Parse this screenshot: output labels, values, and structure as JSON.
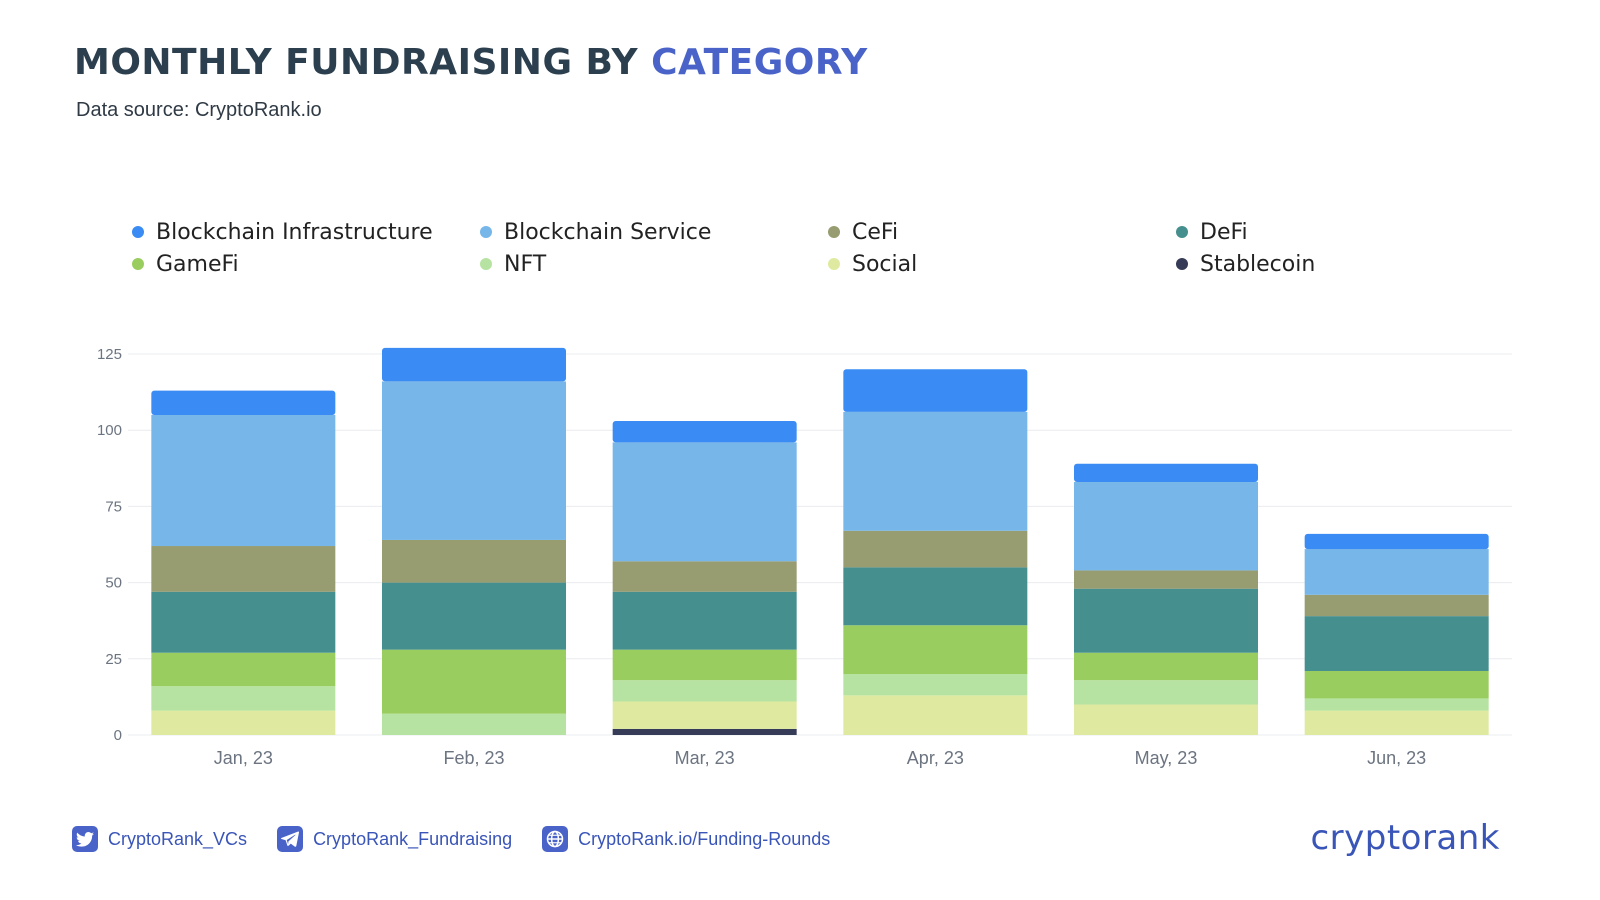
{
  "header": {
    "title_main": "MONTHLY FUNDRAISING BY ",
    "title_accent": "CATEGORY",
    "subtitle": "Data source: CryptoRank.io"
  },
  "colors": {
    "Blockchain Infrastructure": "#3a8bf3",
    "Blockchain Service": "#76b6e8",
    "CeFi": "#979c71",
    "DeFi": "#468f8f",
    "GameFi": "#9acd5f",
    "NFT": "#b6e3a1",
    "Social": "#dfeaa0",
    "Stablecoin": "#363c57",
    "title_accent": "#4a63c8",
    "axis_text": "#6b7480",
    "grid": "#e9ecef"
  },
  "chart_data": {
    "type": "bar",
    "stacked": true,
    "categories": [
      "Jan, 23",
      "Feb, 23",
      "Mar, 23",
      "Apr, 23",
      "May, 23",
      "Jun, 23"
    ],
    "ylim": [
      0,
      125
    ],
    "yticks": [
      0,
      25,
      50,
      75,
      100,
      125
    ],
    "grid": true,
    "legend_position": "top",
    "series": [
      {
        "name": "Stablecoin",
        "values": [
          0,
          0,
          2,
          0,
          0,
          0
        ]
      },
      {
        "name": "Social",
        "values": [
          8,
          0,
          9,
          13,
          10,
          8
        ]
      },
      {
        "name": "NFT",
        "values": [
          8,
          7,
          7,
          7,
          8,
          4
        ]
      },
      {
        "name": "GameFi",
        "values": [
          11,
          21,
          10,
          16,
          9,
          9
        ]
      },
      {
        "name": "DeFi",
        "values": [
          20,
          22,
          19,
          19,
          21,
          18
        ]
      },
      {
        "name": "CeFi",
        "values": [
          15,
          14,
          10,
          12,
          6,
          7
        ]
      },
      {
        "name": "Blockchain Service",
        "values": [
          43,
          52,
          39,
          39,
          29,
          15
        ]
      },
      {
        "name": "Blockchain Infrastructure",
        "values": [
          8,
          11,
          7,
          14,
          6,
          5
        ]
      }
    ],
    "legend_order": [
      "Blockchain Infrastructure",
      "Blockchain Service",
      "CeFi",
      "DeFi",
      "GameFi",
      "NFT",
      "Social",
      "Stablecoin"
    ]
  },
  "footer": {
    "links": [
      {
        "icon": "twitter-icon",
        "label": "CryptoRank_VCs"
      },
      {
        "icon": "telegram-icon",
        "label": "CryptoRank_Fundraising"
      },
      {
        "icon": "globe-icon",
        "label": "CryptoRank.io/Funding-Rounds"
      }
    ],
    "logo": "cryptorank"
  }
}
